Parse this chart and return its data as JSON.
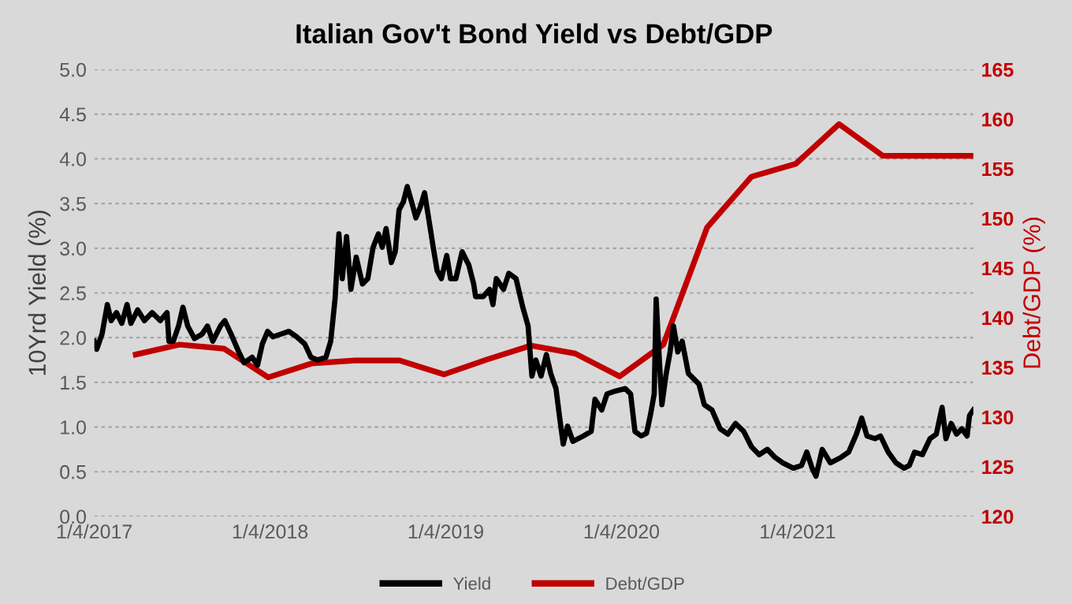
{
  "chart_data": {
    "type": "line",
    "title": "Italian Gov't Bond Yield vs Debt/GDP",
    "ylabel": "10Yrd Yield (%)",
    "y2label": "Debt/GDP (%)",
    "xlim": [
      "2017-01-04",
      "2022-01-04"
    ],
    "xticks": [
      {
        "value": "2017-01-04",
        "label": "1/4/2017"
      },
      {
        "value": "2018-01-04",
        "label": "1/4/2018"
      },
      {
        "value": "2019-01-04",
        "label": "1/4/2019"
      },
      {
        "value": "2020-01-04",
        "label": "1/4/2020"
      },
      {
        "value": "2021-01-04",
        "label": "1/4/2021"
      }
    ],
    "ylim": [
      0,
      5
    ],
    "yticks": [
      {
        "value": 0,
        "label": "0.0"
      },
      {
        "value": 0.5,
        "label": "0.5"
      },
      {
        "value": 1,
        "label": "1.0"
      },
      {
        "value": 1.5,
        "label": "1.5"
      },
      {
        "value": 2,
        "label": "2.0"
      },
      {
        "value": 2.5,
        "label": "2.5"
      },
      {
        "value": 3,
        "label": "3.0"
      },
      {
        "value": 3.5,
        "label": "3.5"
      },
      {
        "value": 4,
        "label": "4.0"
      },
      {
        "value": 4.5,
        "label": "4.5"
      },
      {
        "value": 5,
        "label": "5.0"
      }
    ],
    "y2lim": [
      120,
      165
    ],
    "y2ticks": [
      120,
      125,
      130,
      135,
      140,
      145,
      150,
      155,
      160,
      165
    ],
    "grid": "y",
    "legend": "bottom",
    "marker": "none",
    "line_style": "solid",
    "series": [
      {
        "name": "Yield",
        "color": "#000000",
        "axis": "y",
        "x": [
          "2017-01-04",
          "2017-01-09",
          "2017-01-20",
          "2017-01-31",
          "2017-02-08",
          "2017-02-19",
          "2017-03-02",
          "2017-03-13",
          "2017-03-21",
          "2017-04-04",
          "2017-04-18",
          "2017-05-04",
          "2017-05-21",
          "2017-06-04",
          "2017-06-08",
          "2017-06-17",
          "2017-06-28",
          "2017-07-07",
          "2017-07-17",
          "2017-07-31",
          "2017-08-16",
          "2017-08-27",
          "2017-09-07",
          "2017-09-23",
          "2017-10-02",
          "2017-10-15",
          "2017-10-31",
          "2017-11-11",
          "2017-11-28",
          "2017-12-09",
          "2017-12-19",
          "2017-12-30",
          "2018-01-10",
          "2018-01-27",
          "2018-02-12",
          "2018-02-28",
          "2018-03-17",
          "2018-03-30",
          "2018-04-13",
          "2018-04-30",
          "2018-05-10",
          "2018-05-19",
          "2018-05-27",
          "2018-06-03",
          "2018-06-12",
          "2018-06-21",
          "2018-07-02",
          "2018-07-15",
          "2018-07-26",
          "2018-08-06",
          "2018-08-17",
          "2018-08-25",
          "2018-09-02",
          "2018-09-13",
          "2018-09-21",
          "2018-09-29",
          "2018-10-08",
          "2018-10-16",
          "2018-10-27",
          "2018-11-03",
          "2018-11-12",
          "2018-11-21",
          "2018-12-02",
          "2018-12-09",
          "2018-12-17",
          "2018-12-26",
          "2019-01-06",
          "2019-01-14",
          "2019-01-25",
          "2019-02-07",
          "2019-02-21",
          "2019-03-03",
          "2019-03-07",
          "2019-03-23",
          "2019-04-05",
          "2019-04-12",
          "2019-04-19",
          "2019-05-04",
          "2019-05-15",
          "2019-05-30",
          "2019-06-13",
          "2019-06-24",
          "2019-07-02",
          "2019-07-10",
          "2019-07-21",
          "2019-08-01",
          "2019-08-10",
          "2019-08-21",
          "2019-08-28",
          "2019-09-05",
          "2019-09-14",
          "2019-09-25",
          "2019-10-17",
          "2019-11-02",
          "2019-11-10",
          "2019-11-24",
          "2019-12-05",
          "2019-12-21",
          "2020-01-12",
          "2020-01-23",
          "2020-02-01",
          "2020-02-14",
          "2020-02-25",
          "2020-03-04",
          "2020-03-12",
          "2020-03-16",
          "2020-03-23",
          "2020-03-28",
          "2020-04-06",
          "2020-04-14",
          "2020-04-21",
          "2020-04-30",
          "2020-05-09",
          "2020-05-22",
          "2020-06-02",
          "2020-06-13",
          "2020-06-24",
          "2020-07-10",
          "2020-07-27",
          "2020-08-12",
          "2020-08-28",
          "2020-09-14",
          "2020-09-30",
          "2020-10-16",
          "2020-11-02",
          "2020-11-18",
          "2020-12-04",
          "2020-12-26",
          "2021-01-12",
          "2021-01-23",
          "2021-02-03",
          "2021-02-11",
          "2021-02-24",
          "2021-03-13",
          "2021-04-04",
          "2021-04-20",
          "2021-05-06",
          "2021-05-17",
          "2021-05-28",
          "2021-06-14",
          "2021-06-25",
          "2021-07-11",
          "2021-07-27",
          "2021-08-13",
          "2021-08-24",
          "2021-09-04",
          "2021-09-20",
          "2021-10-06",
          "2021-10-19",
          "2021-10-31",
          "2021-11-08",
          "2021-11-19",
          "2021-11-30",
          "2021-12-11",
          "2021-12-22",
          "2021-12-27",
          "2022-01-04"
        ],
        "values": [
          1.96,
          1.87,
          2.04,
          2.37,
          2.19,
          2.28,
          2.16,
          2.37,
          2.16,
          2.31,
          2.19,
          2.28,
          2.19,
          2.28,
          1.96,
          1.96,
          2.13,
          2.34,
          2.13,
          1.99,
          2.04,
          2.13,
          1.96,
          2.13,
          2.19,
          2.04,
          1.84,
          1.72,
          1.78,
          1.69,
          1.93,
          2.07,
          2.01,
          2.04,
          2.07,
          2.01,
          1.93,
          1.78,
          1.75,
          1.78,
          1.96,
          2.43,
          3.16,
          2.66,
          3.13,
          2.54,
          2.9,
          2.6,
          2.66,
          3.01,
          3.16,
          3.01,
          3.22,
          2.84,
          2.96,
          3.43,
          3.52,
          3.69,
          3.48,
          3.34,
          3.46,
          3.62,
          3.25,
          3.01,
          2.75,
          2.66,
          2.92,
          2.66,
          2.66,
          2.96,
          2.81,
          2.6,
          2.46,
          2.46,
          2.54,
          2.37,
          2.66,
          2.54,
          2.72,
          2.66,
          2.34,
          2.13,
          1.57,
          1.75,
          1.57,
          1.81,
          1.6,
          1.43,
          1.13,
          0.81,
          1.01,
          0.84,
          0.9,
          0.95,
          1.31,
          1.19,
          1.37,
          1.4,
          1.43,
          1.37,
          0.95,
          0.9,
          0.93,
          1.13,
          1.37,
          2.43,
          1.72,
          1.25,
          1.6,
          1.84,
          2.13,
          1.84,
          1.96,
          1.6,
          1.54,
          1.48,
          1.25,
          1.19,
          0.98,
          0.92,
          1.04,
          0.95,
          0.78,
          0.69,
          0.75,
          0.66,
          0.6,
          0.54,
          0.57,
          0.72,
          0.54,
          0.45,
          0.75,
          0.6,
          0.66,
          0.72,
          0.92,
          1.1,
          0.9,
          0.87,
          0.9,
          0.72,
          0.6,
          0.54,
          0.57,
          0.72,
          0.69,
          0.87,
          0.92,
          1.22,
          0.87,
          1.04,
          0.92,
          0.98,
          0.9,
          1.13,
          1.19
        ]
      },
      {
        "name": "Debt/GDP",
        "color": "#c00000",
        "axis": "y2",
        "x": [
          "2017-03-31",
          "2017-06-30",
          "2017-09-30",
          "2017-12-31",
          "2018-03-31",
          "2018-06-30",
          "2018-09-30",
          "2018-12-31",
          "2019-03-31",
          "2019-06-30",
          "2019-09-30",
          "2019-12-31",
          "2020-03-31",
          "2020-06-30",
          "2020-09-30",
          "2020-12-31",
          "2021-03-31",
          "2021-06-30",
          "2021-09-30",
          "2021-12-31"
        ],
        "values": [
          136.3,
          137.3,
          136.9,
          134.0,
          135.4,
          135.7,
          135.7,
          134.3,
          135.8,
          137.2,
          136.4,
          134.1,
          137.3,
          149.1,
          154.2,
          155.5,
          159.5,
          156.3,
          156.3,
          156.3
        ]
      }
    ]
  }
}
